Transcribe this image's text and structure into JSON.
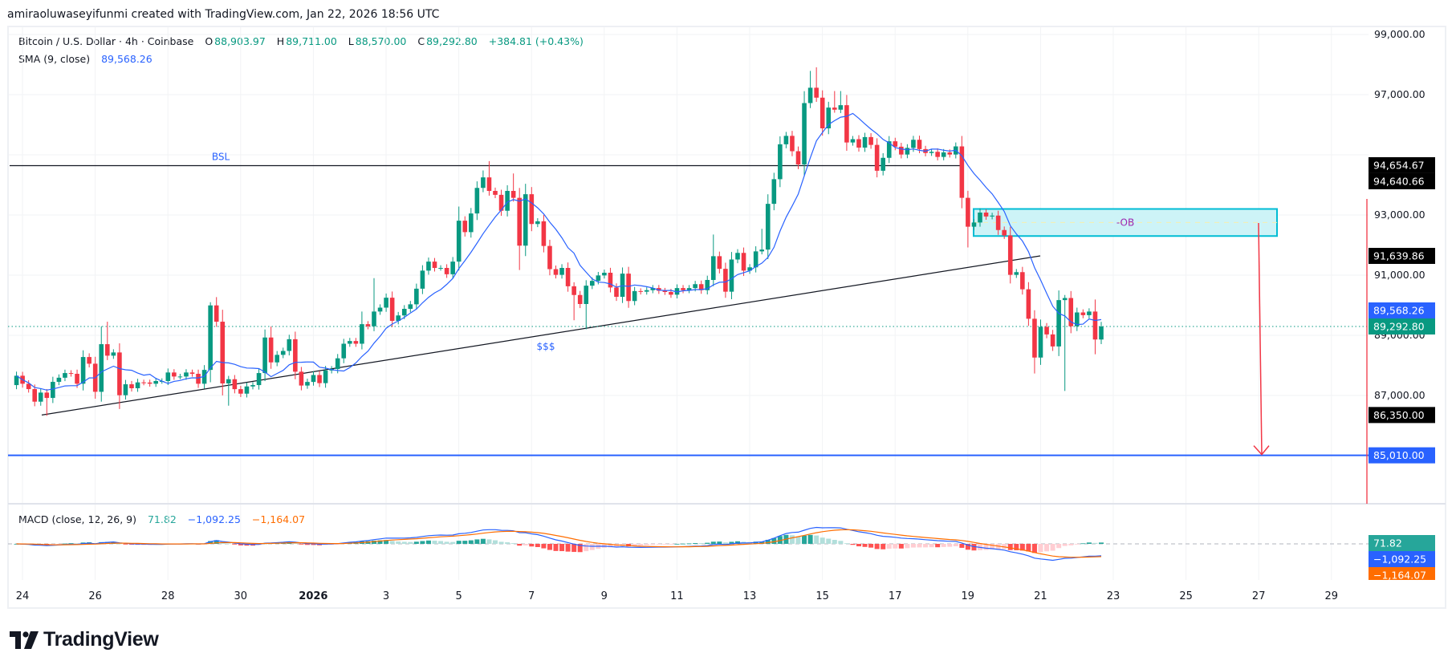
{
  "header": {
    "attribution": "amiraoluwaseyifunmi created with TradingView.com, Jan 22, 2026 18:56 UTC"
  },
  "legend": {
    "symbol": "Bitcoin / U.S. Dollar · 4h · Coinbase",
    "o_label": "O",
    "o": "88,903.97",
    "h_label": "H",
    "h": "89,711.00",
    "l_label": "L",
    "l": "88,570.00",
    "c_label": "C",
    "c": "89,292.80",
    "change": "+384.81 (+0.43%)",
    "sma_label": "SMA (9, close)",
    "sma_value": "89,568.26",
    "macd_label": "MACD (close, 12, 26, 9)",
    "macd_hist": "71.82",
    "macd_line": "−1,092.25",
    "macd_signal": "−1,164.07"
  },
  "annotations": {
    "bsl": "BSL",
    "sss": "$$$",
    "ob": "-OB"
  },
  "logo": {
    "text": "TradingView"
  },
  "colors": {
    "up": "#089981",
    "down": "#f23645",
    "sma": "#2962ff",
    "macd": "#2962ff",
    "signal": "#ff6d00",
    "ob_fill": "#cdf3f7",
    "ob_border": "#00bcd4",
    "target": "#2962ff",
    "arrow": "#f23645"
  },
  "chart_data": {
    "type": "candlestick",
    "symbol": "BTCUSD",
    "interval": "4h",
    "first_open": 87345,
    "closes": [
      87656,
      87390,
      87212,
      86794,
      87096,
      86918,
      87452,
      87590,
      87745,
      87720,
      87390,
      88278,
      88056,
      87122,
      88705,
      88323,
      88430,
      87008,
      87372,
      87240,
      87435,
      87430,
      87390,
      87480,
      87480,
      87764,
      87630,
      87630,
      87764,
      87720,
      87390,
      87850,
      89994,
      89452,
      87400,
      87540,
      87210,
      87060,
      87300,
      87345,
      87745,
      88927,
      88100,
      88350,
      88480,
      88870,
      87790,
      87330,
      87450,
      87680,
      87410,
      87830,
      87880,
      88235,
      88720,
      88810,
      88720,
      89370,
      89300,
      89790,
      89920,
      90250,
      89480,
      89660,
      89880,
      90030,
      90550,
      91150,
      91450,
      91240,
      91240,
      91030,
      91450,
      92810,
      92430,
      93050,
      93900,
      94250,
      93800,
      93670,
      93140,
      93800,
      93570,
      91980,
      93690,
      92700,
      92790,
      91970,
      91200,
      91010,
      91240,
      90630,
      90340,
      90040,
      90650,
      90810,
      90990,
      91080,
      90590,
      90280,
      91050,
      90140,
      90470,
      90450,
      90500,
      90570,
      90480,
      90440,
      90350,
      90570,
      90500,
      90570,
      90700,
      90500,
      90840,
      91630,
      91210,
      90450,
      91520,
      91740,
      91150,
      91260,
      91790,
      91850,
      93370,
      94190,
      95350,
      95630,
      95120,
      94680,
      96720,
      97230,
      96900,
      95880,
      96570,
      96500,
      96650,
      95410,
      95520,
      95240,
      95590,
      95330,
      94470,
      94900,
      95450,
      95270,
      95010,
      95230,
      95500,
      95190,
      95060,
      95100,
      94930,
      95080,
      95010,
      95280,
      93570,
      92610,
      92750,
      93080,
      92950,
      92980,
      92500,
      92320,
      91010,
      91100,
      90530,
      89550,
      88260,
      89280,
      89030,
      88630,
      90170,
      90240,
      89300,
      89760,
      89670,
      89790,
      88860,
      89292.8
    ],
    "wick_extremes": [
      [
        5,
        null,
        86323
      ],
      [
        14,
        89300,
        null
      ],
      [
        15,
        89452,
        null
      ],
      [
        17,
        null,
        86550
      ],
      [
        32,
        90100,
        null
      ],
      [
        33,
        90270,
        null
      ],
      [
        35,
        null,
        86660
      ],
      [
        42,
        89290,
        null
      ],
      [
        57,
        89790,
        null
      ],
      [
        59,
        90900,
        null
      ],
      [
        73,
        93280,
        null
      ],
      [
        77,
        94480,
        null
      ],
      [
        78,
        94790,
        null
      ],
      [
        82,
        94380,
        null
      ],
      [
        83,
        null,
        91170
      ],
      [
        92,
        null,
        89500
      ],
      [
        94,
        null,
        89200
      ],
      [
        115,
        92350,
        null
      ],
      [
        123,
        92540,
        null
      ],
      [
        131,
        97790,
        null
      ],
      [
        132,
        97910,
        null
      ],
      [
        135,
        97120,
        null
      ],
      [
        136,
        97120,
        null
      ],
      [
        137,
        96990,
        null
      ],
      [
        157,
        null,
        91920
      ],
      [
        168,
        null,
        87730
      ],
      [
        173,
        null,
        87150
      ],
      [
        178,
        90190,
        88370
      ]
    ],
    "y_ticks": [
      "99,000.00",
      "97,000.00",
      "93,000.00",
      "91,000.00",
      "89,000.00",
      "87,000.00"
    ],
    "y_tick_values": [
      99000,
      97000,
      93000,
      91000,
      89000,
      87000
    ],
    "grid_values": [
      99000,
      97000,
      95000,
      93000,
      91000,
      89000,
      87000,
      85000
    ],
    "x_ticks": [
      "24",
      "26",
      "28",
      "30",
      "2026",
      "3",
      "5",
      "7",
      "9",
      "11",
      "13",
      "15",
      "17",
      "19",
      "21",
      "23",
      "25",
      "27",
      "29"
    ],
    "price_labels": [
      {
        "text": "94,654.67",
        "value": 94654.67,
        "bg": "#000000"
      },
      {
        "text": "94,640.66",
        "value": 94640.66,
        "bg": "#000000"
      },
      {
        "text": "91,639.86",
        "value": 91639.86,
        "bg": "#000000"
      },
      {
        "text": "89,568.26",
        "value": 89568.26,
        "bg": "#2962ff"
      },
      {
        "text": "89,292.80",
        "value": 89292.8,
        "bg": "#089981"
      },
      {
        "text": "86,350.00",
        "value": 86350,
        "bg": "#000000"
      },
      {
        "text": "85,010.00",
        "value": 85010,
        "bg": "#2962ff"
      }
    ],
    "macd_labels": [
      {
        "text": "71.82",
        "bg": "#26a69a"
      },
      {
        "text": "−1,092.25",
        "bg": "#2962ff"
      },
      {
        "text": "−1,164.07",
        "bg": "#ff6d00"
      }
    ],
    "levels": {
      "bsl": 94640.66,
      "trend_start": 86350,
      "trend_end": 91639.86,
      "ob_top": 93200,
      "ob_bottom": 92300,
      "target": 85010,
      "current": 89292.8
    },
    "indicators": [
      "SMA (9, close)",
      "MACD (close, 12, 26, 9)"
    ],
    "grid": true
  }
}
